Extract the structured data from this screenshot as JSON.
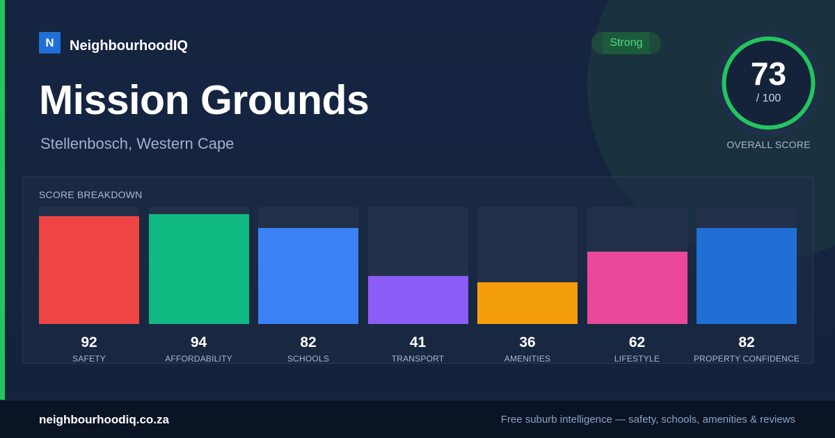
{
  "brand": {
    "logo_letter": "N",
    "name": "NeighbourhoodIQ"
  },
  "suburb": {
    "name": "Mission Grounds",
    "location": "Stellenbosch, Western Cape"
  },
  "badge": {
    "label": "Strong"
  },
  "overall": {
    "score": "73",
    "max_label": "/ 100",
    "label": "OVERALL SCORE",
    "fraction": 0.73
  },
  "breakdown": {
    "title": "SCORE BREAKDOWN",
    "items": [
      {
        "label": "SAFETY",
        "value": "92",
        "score": 92,
        "color": "#ef4444"
      },
      {
        "label": "AFFORDABILITY",
        "value": "94",
        "score": 94,
        "color": "#10b981"
      },
      {
        "label": "SCHOOLS",
        "value": "82",
        "score": 82,
        "color": "#3b82f6"
      },
      {
        "label": "TRANSPORT",
        "value": "41",
        "score": 41,
        "color": "#8b5cf6"
      },
      {
        "label": "AMENITIES",
        "value": "36",
        "score": 36,
        "color": "#f59e0b"
      },
      {
        "label": "LIFESTYLE",
        "value": "62",
        "score": 62,
        "color": "#ec4899"
      },
      {
        "label": "PROPERTY CONFIDENCE",
        "value": "82",
        "score": 82,
        "color": "#1f6fd6"
      }
    ]
  },
  "colors": {
    "accent": "#22c55e",
    "brand": "#1f6fd6"
  },
  "footer": {
    "url": "neighbourhoodiq.co.za",
    "tagline": "Free suburb intelligence — safety, schools, amenities & reviews"
  }
}
